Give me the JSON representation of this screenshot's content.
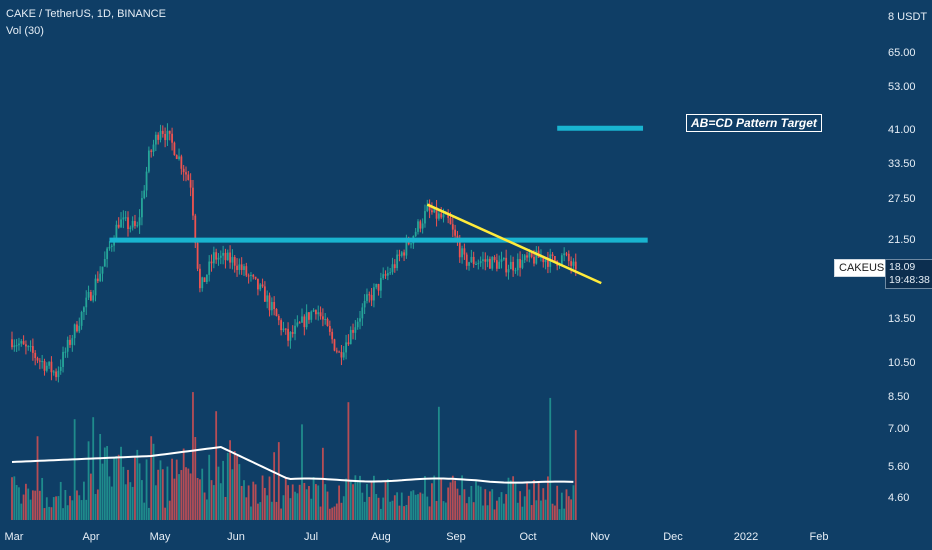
{
  "legend": {
    "symbol_line": "CAKE / TetherUS, 1D, BINANCE",
    "volume_label": "Vol (30)"
  },
  "price_axis": {
    "unit_label": "8 USDT",
    "ticks": [
      "65.00",
      "53.00",
      "41.00",
      "33.50",
      "27.50",
      "21.50",
      "13.50",
      "10.50",
      "8.50",
      "7.00",
      "5.60",
      "4.60"
    ]
  },
  "time_axis": {
    "ticks": [
      "Mar",
      "Apr",
      "May",
      "Jun",
      "Jul",
      "Aug",
      "Sep",
      "Oct",
      "Nov",
      "Dec",
      "2022",
      "Feb"
    ]
  },
  "symbol_tag": "CAKEUSDT",
  "last_price": "18.09",
  "countdown": "19:48:38",
  "annotation_label": "AB=CD Pattern Target",
  "colors": {
    "background": "#0f3e66",
    "up": "#26a69a",
    "down": "#ef5350",
    "horizontal_level": "#19b4d0",
    "trendline": "#ffeb3b",
    "volume_ma": "#ffffff"
  },
  "chart_data": {
    "type": "candlestick",
    "scale": "log",
    "x_start": "2021-03-01",
    "x_range": [
      "2021-03-01",
      "2022-02-28"
    ],
    "y_range": [
      4.0,
      80.0
    ],
    "series": [
      {
        "name": "price",
        "anchors": [
          {
            "date": "2021-03-01",
            "close": 12.0
          },
          {
            "date": "2021-03-10",
            "close": 11.0
          },
          {
            "date": "2021-03-20",
            "close": 9.8
          },
          {
            "date": "2021-03-30",
            "close": 13.5
          },
          {
            "date": "2021-04-10",
            "close": 19.0
          },
          {
            "date": "2021-04-16",
            "close": 24.0
          },
          {
            "date": "2021-04-24",
            "close": 23.0
          },
          {
            "date": "2021-04-29",
            "close": 35.0
          },
          {
            "date": "2021-05-04",
            "close": 42.0
          },
          {
            "date": "2021-05-10",
            "close": 37.0
          },
          {
            "date": "2021-05-17",
            "close": 30.0
          },
          {
            "date": "2021-05-21",
            "close": 16.0
          },
          {
            "date": "2021-05-27",
            "close": 19.5
          },
          {
            "date": "2021-06-05",
            "close": 19.0
          },
          {
            "date": "2021-06-18",
            "close": 15.5
          },
          {
            "date": "2021-06-28",
            "close": 12.0
          },
          {
            "date": "2021-07-10",
            "close": 14.5
          },
          {
            "date": "2021-07-20",
            "close": 11.0
          },
          {
            "date": "2021-08-01",
            "close": 15.0
          },
          {
            "date": "2021-08-14",
            "close": 19.0
          },
          {
            "date": "2021-08-27",
            "close": 25.5
          },
          {
            "date": "2021-09-05",
            "close": 24.0
          },
          {
            "date": "2021-09-12",
            "close": 19.0
          },
          {
            "date": "2021-09-22",
            "close": 19.0
          },
          {
            "date": "2021-10-01",
            "close": 18.5
          },
          {
            "date": "2021-10-15",
            "close": 19.5
          },
          {
            "date": "2021-10-20",
            "close": 19.0
          },
          {
            "date": "2021-10-25",
            "close": 19.5
          },
          {
            "date": "2021-10-30",
            "close": 18.09
          }
        ]
      },
      {
        "name": "Vol (30)",
        "type": "volume",
        "ma_start": 5.2,
        "ma_peak": 5.7,
        "ma_end": 4.6
      }
    ],
    "annotations": [
      {
        "type": "horizontal",
        "price": 21.5,
        "from": "2021-04-12",
        "to": "2021-11-30"
      },
      {
        "type": "horizontal",
        "price": 41.5,
        "from": "2021-10-22",
        "to": "2021-11-28"
      },
      {
        "type": "trendline",
        "from": {
          "date": "2021-08-27",
          "price": 26.5
        },
        "to": {
          "date": "2021-11-10",
          "price": 16.7
        }
      }
    ]
  }
}
